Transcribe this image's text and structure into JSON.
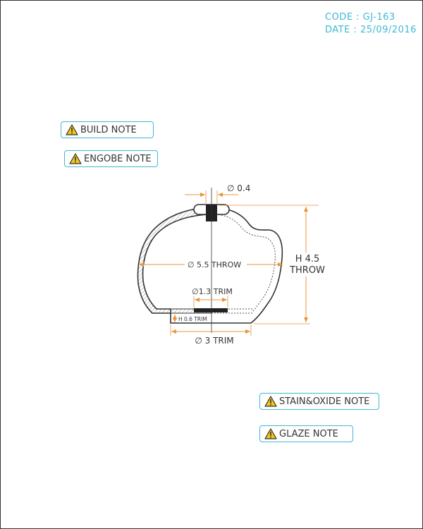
{
  "meta": {
    "code": "CODE : GJ-163",
    "date": "DATE : 25/09/2016"
  },
  "notes": {
    "build": "BUILD NOTE",
    "engobe": "ENGOBE NOTE",
    "stain_oxide": "STAIN&OXIDE NOTE",
    "glaze": "GLAZE NOTE"
  },
  "dimensions": {
    "knob": "∅ 0.4",
    "throw_diameter": "∅ 5.5 THROW",
    "height_value": "H 4.5",
    "height_label": "THROW",
    "trim_diameter": "∅1.3 TRIM",
    "foot_height": "H 0.6 TRIM",
    "base_trim": "∅ 3 TRIM"
  },
  "colors": {
    "accent": "#3fb8d4",
    "dimension": "#e8943a",
    "warning": "#f5c518"
  }
}
